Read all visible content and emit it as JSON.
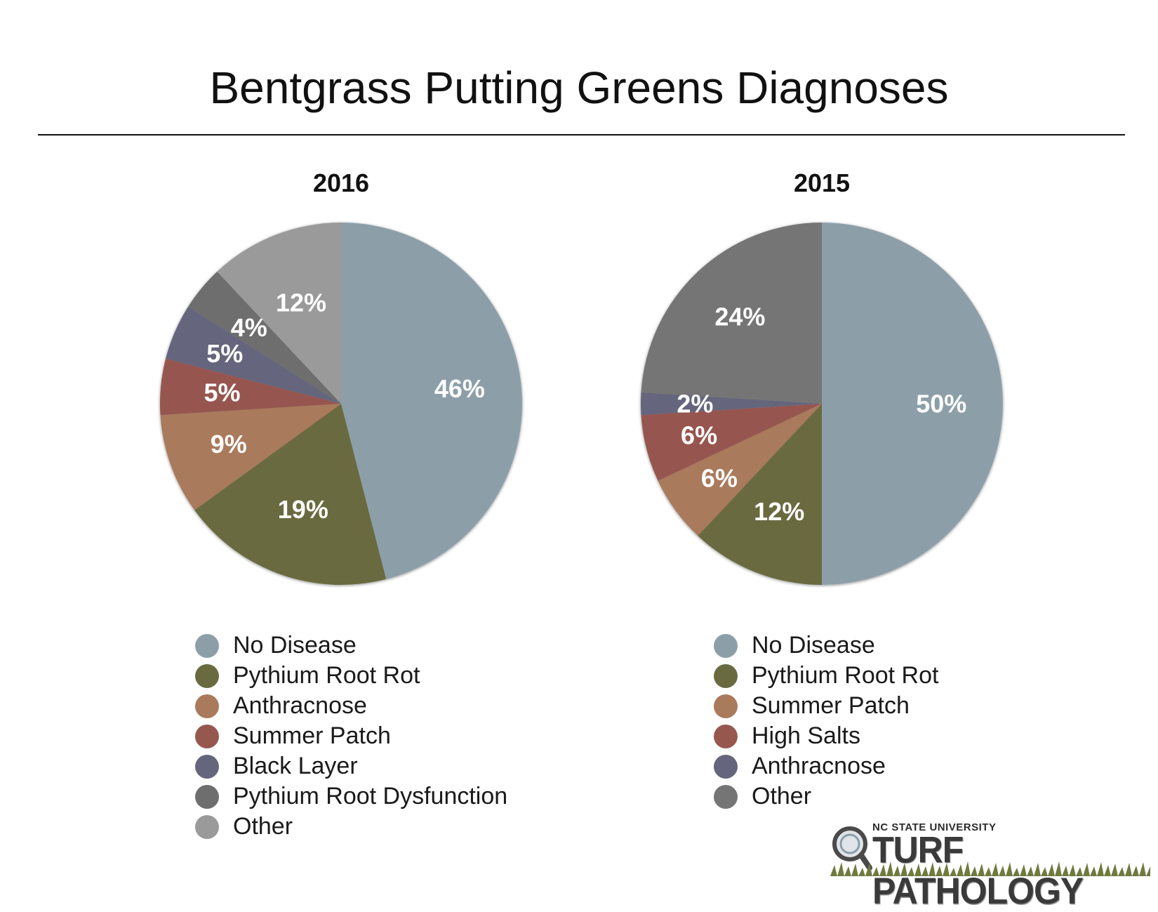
{
  "page": {
    "title": "Bentgrass Putting Greens Diagnoses"
  },
  "logo": {
    "university": "NC STATE UNIVERSITY",
    "wordmark": "TURF PATHOLOGY"
  },
  "chart_data": [
    {
      "type": "pie",
      "title": "2016",
      "legend_position": "bottom",
      "slices": [
        {
          "label": "No Disease",
          "value": 46,
          "display": "46%",
          "color": "#8c9fa9"
        },
        {
          "label": "Pythium Root Rot",
          "value": 19,
          "display": "19%",
          "color": "#6a6a40"
        },
        {
          "label": "Anthracnose",
          "value": 9,
          "display": "9%",
          "color": "#a97a5b"
        },
        {
          "label": "Summer Patch",
          "value": 5,
          "display": "5%",
          "color": "#96574f"
        },
        {
          "label": "Black Layer",
          "value": 5,
          "display": "5%",
          "color": "#65657d"
        },
        {
          "label": "Pythium Root Dysfunction",
          "value": 4,
          "display": "4%",
          "color": "#6e6e6e"
        },
        {
          "label": "Other",
          "value": 12,
          "display": "12%",
          "color": "#9a9a9a"
        }
      ]
    },
    {
      "type": "pie",
      "title": "2015",
      "legend_position": "bottom",
      "slices": [
        {
          "label": "No Disease",
          "value": 50,
          "display": "50%",
          "color": "#8c9fa9"
        },
        {
          "label": "Pythium Root Rot",
          "value": 12,
          "display": "12%",
          "color": "#6a6a40"
        },
        {
          "label": "Summer Patch",
          "value": 6,
          "display": "6%",
          "color": "#a97a5b"
        },
        {
          "label": "High Salts",
          "value": 6,
          "display": "6%",
          "color": "#96574f"
        },
        {
          "label": "Anthracnose",
          "value": 2,
          "display": "2%",
          "color": "#65657d"
        },
        {
          "label": "Other",
          "value": 24,
          "display": "24%",
          "color": "#757575"
        }
      ]
    }
  ]
}
